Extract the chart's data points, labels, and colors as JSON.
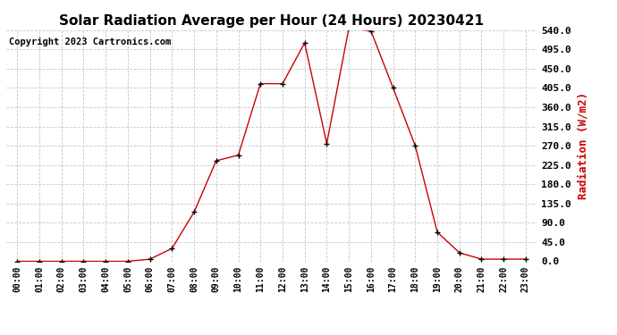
{
  "title": "Solar Radiation Average per Hour (24 Hours) 20230421",
  "copyright": "Copyright 2023 Cartronics.com",
  "ylabel": "Radiation (W/m2)",
  "hours": [
    "00:00",
    "01:00",
    "02:00",
    "03:00",
    "04:00",
    "05:00",
    "06:00",
    "07:00",
    "08:00",
    "09:00",
    "10:00",
    "11:00",
    "12:00",
    "13:00",
    "14:00",
    "15:00",
    "16:00",
    "17:00",
    "18:00",
    "19:00",
    "20:00",
    "21:00",
    "22:00",
    "23:00"
  ],
  "values": [
    0.0,
    0.0,
    0.0,
    0.0,
    0.0,
    0.0,
    5.0,
    30.0,
    115.0,
    235.0,
    248.0,
    415.0,
    415.0,
    510.0,
    275.0,
    545.0,
    538.0,
    405.0,
    270.0,
    68.0,
    20.0,
    5.0,
    5.0,
    5.0
  ],
  "line_color": "#cc0000",
  "marker_color": "#000000",
  "background_color": "#ffffff",
  "grid_color": "#c8c8c8",
  "ylim": [
    0.0,
    540.0
  ],
  "yticks": [
    0.0,
    45.0,
    90.0,
    135.0,
    180.0,
    225.0,
    270.0,
    315.0,
    360.0,
    405.0,
    450.0,
    495.0,
    540.0
  ],
  "title_fontsize": 11,
  "ylabel_color": "#cc0000",
  "copyright_color": "#000000",
  "copyright_fontsize": 7.5
}
